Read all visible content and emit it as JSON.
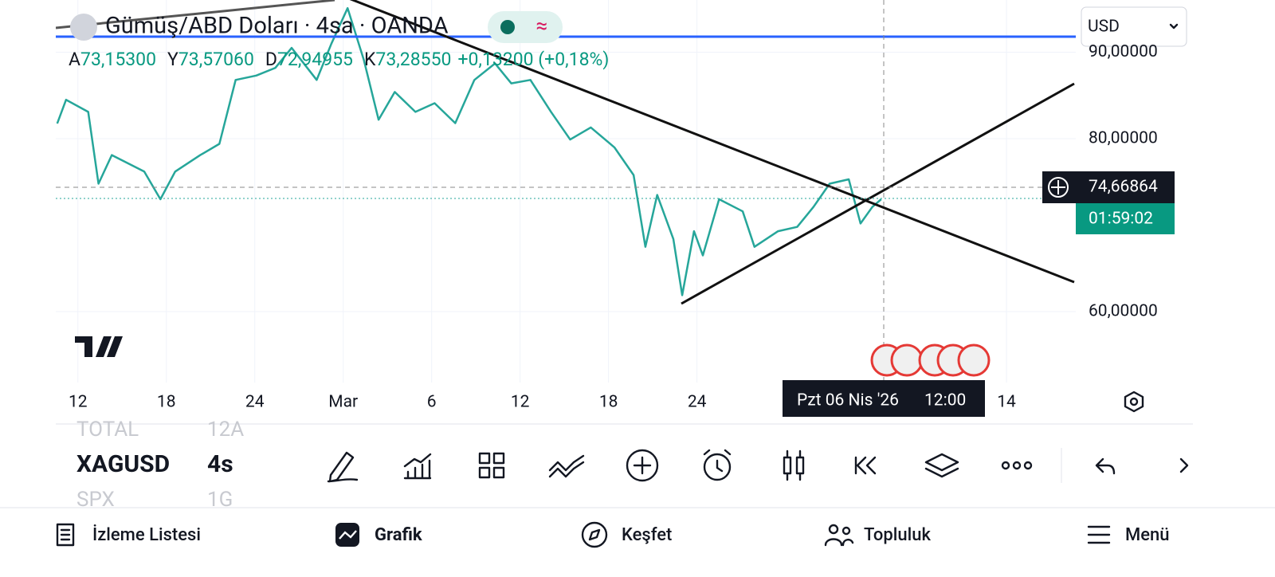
{
  "header": {
    "title": "Gümüş/ABD Doları · 4sa · OANDA",
    "currency": "USD",
    "ohlc": [
      {
        "key": "A",
        "value": "73,15300"
      },
      {
        "key": "Y",
        "value": "73,57060"
      },
      {
        "key": "D",
        "value": "72,94955"
      },
      {
        "key": "K",
        "value": "73,28550"
      }
    ],
    "change": "+0,13200 (+0,18%)"
  },
  "chart_data": {
    "type": "line",
    "color": "#26a69a",
    "grid": true,
    "x": [
      -1.4,
      -0.8,
      0.7,
      1.4,
      2.3,
      4.5,
      5.6,
      6.6,
      8.3,
      9.6,
      10.7,
      12.1,
      13.4,
      14.5,
      16.2,
      17.2,
      18.3,
      19.4,
      20.4,
      21.5,
      22.9,
      24.2,
      25.6,
      26.9,
      28.3,
      29.4,
      30.7,
      32.1,
      33.4,
      34.8,
      36.4,
      37.7,
      38.5,
      39.3,
      40.4,
      41.0,
      41.8,
      42.4,
      43.5,
      45.1,
      45.9,
      47.5,
      48.8,
      49.9,
      51.0,
      52.3,
      53.1,
      53.9,
      54.5
    ],
    "values": [
      81.75,
      84.5,
      83.1,
      74.8,
      78.1,
      76.2,
      73.0,
      76.2,
      78.1,
      79.4,
      86.8,
      87.3,
      88.2,
      90.5,
      86.8,
      91.0,
      95.1,
      89.1,
      82.2,
      85.4,
      83.1,
      84.1,
      81.8,
      86.8,
      88.7,
      86.4,
      86.8,
      83.1,
      79.9,
      81.3,
      79.0,
      75.8,
      67.5,
      73.5,
      68.4,
      61.9,
      69.3,
      66.5,
      73.0,
      71.6,
      67.5,
      69.3,
      69.8,
      72.1,
      74.8,
      75.3,
      70.2,
      72.1,
      73.0
    ],
    "xlim": [
      -1.5,
      67.7
    ],
    "ylim": [
      51.8,
      96.04
    ],
    "xticks": [
      {
        "value": 0,
        "label": "12"
      },
      {
        "value": 6,
        "label": "18"
      },
      {
        "value": 12,
        "label": "24"
      },
      {
        "value": 18,
        "label": "Mar"
      },
      {
        "value": 24,
        "label": "6"
      },
      {
        "value": 30,
        "label": "12"
      },
      {
        "value": 36,
        "label": "18"
      },
      {
        "value": 42,
        "label": "24"
      },
      {
        "value": 63,
        "label": "14"
      }
    ],
    "yticks": [
      {
        "value": 60,
        "label": "60,00000"
      },
      {
        "value": 80,
        "label": "80,00000"
      },
      {
        "value": 90,
        "label": "90,00000"
      }
    ]
  },
  "crosshair": {
    "price": "74,66864",
    "countdown": "01:59:02",
    "date": "Pzt 06 Nis '26",
    "time": "12:00"
  },
  "watchlist": [
    [
      "TOTAL",
      "12A"
    ],
    [
      "XAGUSD",
      "4s"
    ],
    [
      "SPX",
      "1G"
    ]
  ],
  "nav": [
    "İzleme Listesi",
    "Grafik",
    "Keşfet",
    "Topluluk",
    "Menü"
  ]
}
